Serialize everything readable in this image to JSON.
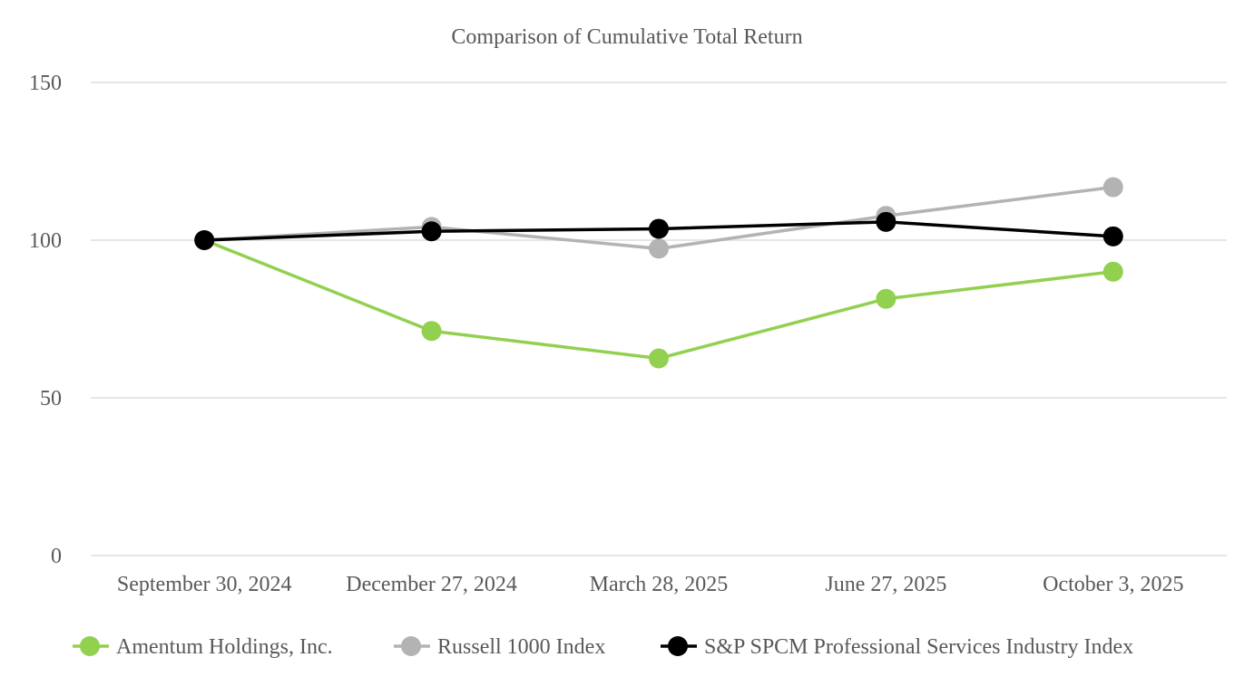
{
  "chart_data": {
    "type": "line",
    "title": "Comparison of Cumulative Total Return",
    "xlabel": "",
    "ylabel": "",
    "categories": [
      "September 30, 2024",
      "December 27, 2024",
      "March 28, 2025",
      "June 27, 2025",
      "October 3, 2025"
    ],
    "ylim": [
      0,
      150
    ],
    "yticks": [
      "0",
      "50",
      "100",
      "150"
    ],
    "grid": true,
    "legend": "bottom",
    "series": [
      {
        "name": "Amentum Holdings, Inc.",
        "color": "#92d050",
        "values": [
          100,
          71.2,
          62.5,
          81.4,
          90.0
        ]
      },
      {
        "name": "Russell 1000 Index",
        "color": "#b3b3b3",
        "values": [
          100,
          104.2,
          97.3,
          107.7,
          116.8
        ]
      },
      {
        "name": "S&P SPCM Professional Services Industry Index",
        "color": "#000000",
        "values": [
          100,
          102.8,
          103.6,
          105.8,
          101.2
        ]
      }
    ]
  }
}
